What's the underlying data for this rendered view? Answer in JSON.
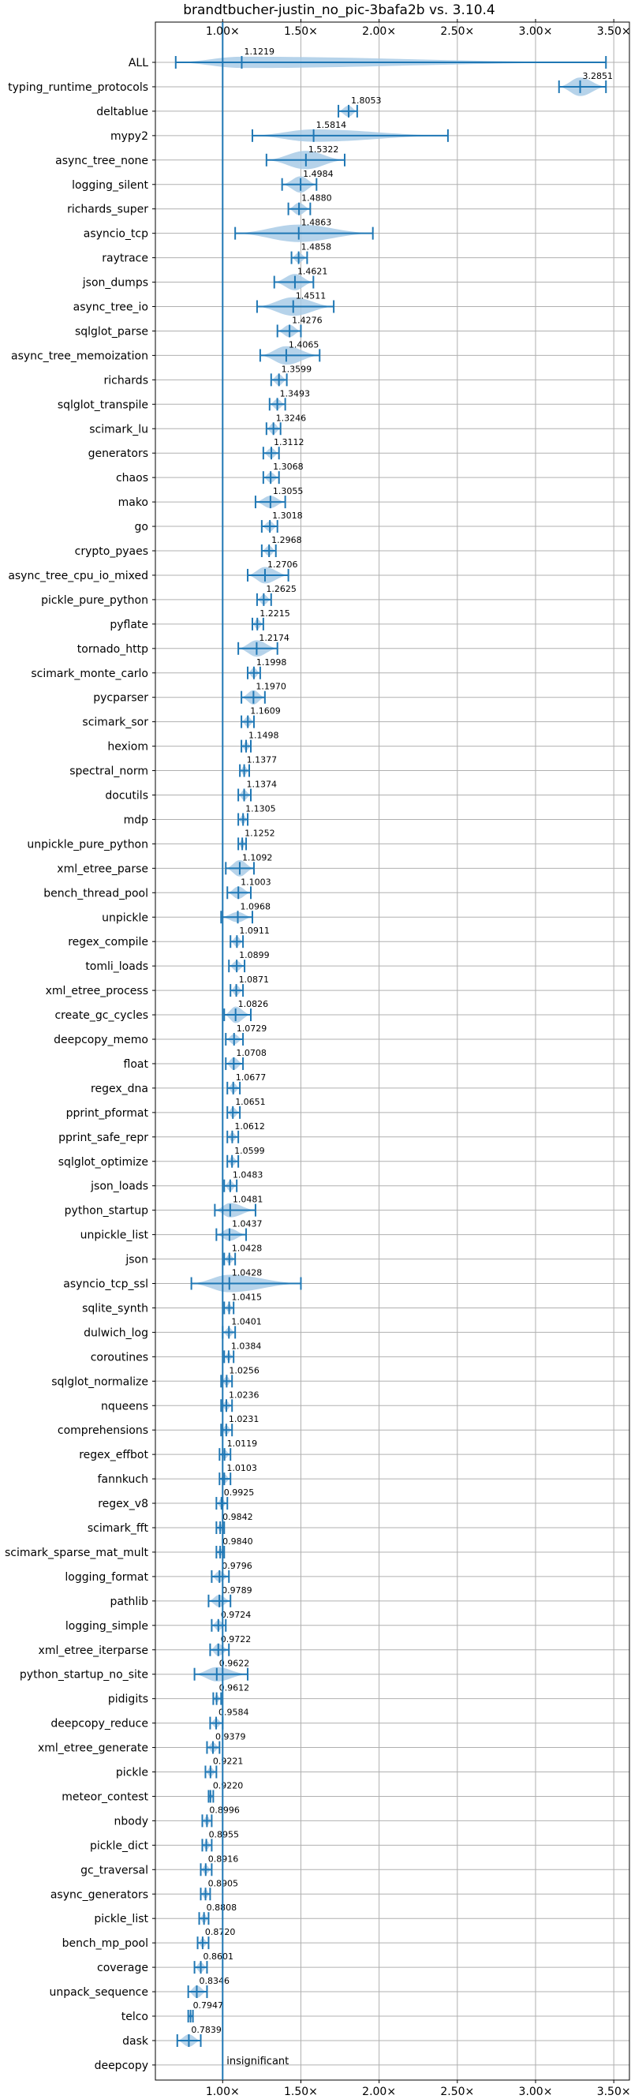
{
  "chart_data": {
    "type": "violin",
    "title": "brandtbucher-justin_no_pic-3bafa2b vs. 3.10.4",
    "xlim": [
      0.57,
      3.6
    ],
    "x_ticks": [
      1.0,
      1.5,
      2.0,
      2.5,
      3.0,
      3.5
    ],
    "x_tick_labels": [
      "1.00×",
      "1.50×",
      "2.00×",
      "2.50×",
      "3.00×",
      "3.50×"
    ],
    "reference_line": 1.0,
    "grid": true,
    "colors": {
      "violin": "#a9cbe6",
      "line": "#1f77b4",
      "grid": "#b0b0b0"
    },
    "annotation": "insignificant",
    "benchmarks": [
      {
        "name": "ALL",
        "value": "1.1219",
        "median": 1.1219,
        "min": 0.7,
        "max": 3.45,
        "width": 0.55
      },
      {
        "name": "typing_runtime_protocols",
        "value": "3.2851",
        "median": 3.2851,
        "min": 3.15,
        "max": 3.45,
        "width": 0.9
      },
      {
        "name": "deltablue",
        "value": "1.8053",
        "median": 1.8053,
        "min": 1.74,
        "max": 1.86,
        "width": 0.55
      },
      {
        "name": "mypy2",
        "value": "1.5814",
        "median": 1.5814,
        "min": 1.19,
        "max": 2.44,
        "width": 0.6
      },
      {
        "name": "async_tree_none",
        "value": "1.5322",
        "median": 1.5322,
        "min": 1.28,
        "max": 1.78,
        "width": 0.9
      },
      {
        "name": "logging_silent",
        "value": "1.4984",
        "median": 1.4984,
        "min": 1.38,
        "max": 1.6,
        "width": 0.8
      },
      {
        "name": "richards_super",
        "value": "1.4880",
        "median": 1.488,
        "min": 1.42,
        "max": 1.56,
        "width": 0.6
      },
      {
        "name": "asyncio_tcp",
        "value": "1.4863",
        "median": 1.4863,
        "min": 1.08,
        "max": 1.96,
        "width": 0.85
      },
      {
        "name": "raytrace",
        "value": "1.4858",
        "median": 1.4858,
        "min": 1.44,
        "max": 1.54,
        "width": 0.5
      },
      {
        "name": "json_dumps",
        "value": "1.4621",
        "median": 1.4621,
        "min": 1.33,
        "max": 1.58,
        "width": 0.8
      },
      {
        "name": "async_tree_io",
        "value": "1.4511",
        "median": 1.4511,
        "min": 1.22,
        "max": 1.71,
        "width": 0.9
      },
      {
        "name": "sqlglot_parse",
        "value": "1.4276",
        "median": 1.4276,
        "min": 1.35,
        "max": 1.5,
        "width": 0.6
      },
      {
        "name": "async_tree_memoization",
        "value": "1.4065",
        "median": 1.4065,
        "min": 1.24,
        "max": 1.62,
        "width": 0.9
      },
      {
        "name": "richards",
        "value": "1.3599",
        "median": 1.3599,
        "min": 1.31,
        "max": 1.41,
        "width": 0.55
      },
      {
        "name": "sqlglot_transpile",
        "value": "1.3493",
        "median": 1.3493,
        "min": 1.3,
        "max": 1.4,
        "width": 0.5
      },
      {
        "name": "scimark_lu",
        "value": "1.3246",
        "median": 1.3246,
        "min": 1.28,
        "max": 1.37,
        "width": 0.55
      },
      {
        "name": "generators",
        "value": "1.3112",
        "median": 1.3112,
        "min": 1.26,
        "max": 1.36,
        "width": 0.5
      },
      {
        "name": "chaos",
        "value": "1.3068",
        "median": 1.3068,
        "min": 1.26,
        "max": 1.36,
        "width": 0.5
      },
      {
        "name": "mako",
        "value": "1.3055",
        "median": 1.3055,
        "min": 1.21,
        "max": 1.4,
        "width": 0.6
      },
      {
        "name": "go",
        "value": "1.3018",
        "median": 1.3018,
        "min": 1.25,
        "max": 1.35,
        "width": 0.5
      },
      {
        "name": "crypto_pyaes",
        "value": "1.2968",
        "median": 1.2968,
        "min": 1.25,
        "max": 1.34,
        "width": 0.5
      },
      {
        "name": "async_tree_cpu_io_mixed",
        "value": "1.2706",
        "median": 1.2706,
        "min": 1.16,
        "max": 1.42,
        "width": 0.8
      },
      {
        "name": "pickle_pure_python",
        "value": "1.2625",
        "median": 1.2625,
        "min": 1.22,
        "max": 1.31,
        "width": 0.5
      },
      {
        "name": "pyflate",
        "value": "1.2215",
        "median": 1.2215,
        "min": 1.19,
        "max": 1.26,
        "width": 0.5
      },
      {
        "name": "tornado_http",
        "value": "1.2174",
        "median": 1.2174,
        "min": 1.1,
        "max": 1.35,
        "width": 0.8
      },
      {
        "name": "scimark_monte_carlo",
        "value": "1.1998",
        "median": 1.1998,
        "min": 1.16,
        "max": 1.24,
        "width": 0.5
      },
      {
        "name": "pycparser",
        "value": "1.1970",
        "median": 1.197,
        "min": 1.12,
        "max": 1.27,
        "width": 0.7
      },
      {
        "name": "scimark_sor",
        "value": "1.1609",
        "median": 1.1609,
        "min": 1.12,
        "max": 1.2,
        "width": 0.5
      },
      {
        "name": "hexiom",
        "value": "1.1498",
        "median": 1.1498,
        "min": 1.12,
        "max": 1.18,
        "width": 0.45
      },
      {
        "name": "spectral_norm",
        "value": "1.1377",
        "median": 1.1377,
        "min": 1.11,
        "max": 1.17,
        "width": 0.45
      },
      {
        "name": "docutils",
        "value": "1.1374",
        "median": 1.1374,
        "min": 1.1,
        "max": 1.18,
        "width": 0.5
      },
      {
        "name": "mdp",
        "value": "1.1305",
        "median": 1.1305,
        "min": 1.1,
        "max": 1.16,
        "width": 0.45
      },
      {
        "name": "unpickle_pure_python",
        "value": "1.1252",
        "median": 1.1252,
        "min": 1.1,
        "max": 1.15,
        "width": 0.45
      },
      {
        "name": "xml_etree_parse",
        "value": "1.1092",
        "median": 1.1092,
        "min": 1.02,
        "max": 1.2,
        "width": 0.8
      },
      {
        "name": "bench_thread_pool",
        "value": "1.1003",
        "median": 1.1003,
        "min": 1.03,
        "max": 1.18,
        "width": 0.6
      },
      {
        "name": "unpickle",
        "value": "1.0968",
        "median": 1.0968,
        "min": 0.99,
        "max": 1.19,
        "width": 0.5
      },
      {
        "name": "regex_compile",
        "value": "1.0911",
        "median": 1.0911,
        "min": 1.05,
        "max": 1.13,
        "width": 0.5
      },
      {
        "name": "tomli_loads",
        "value": "1.0899",
        "median": 1.0899,
        "min": 1.04,
        "max": 1.14,
        "width": 0.5
      },
      {
        "name": "xml_etree_process",
        "value": "1.0871",
        "median": 1.0871,
        "min": 1.05,
        "max": 1.13,
        "width": 0.5
      },
      {
        "name": "create_gc_cycles",
        "value": "1.0826",
        "median": 1.0826,
        "min": 1.01,
        "max": 1.18,
        "width": 0.8
      },
      {
        "name": "deepcopy_memo",
        "value": "1.0729",
        "median": 1.0729,
        "min": 1.02,
        "max": 1.13,
        "width": 0.5
      },
      {
        "name": "float",
        "value": "1.0708",
        "median": 1.0708,
        "min": 1.02,
        "max": 1.13,
        "width": 0.6
      },
      {
        "name": "regex_dna",
        "value": "1.0677",
        "median": 1.0677,
        "min": 1.03,
        "max": 1.11,
        "width": 0.5
      },
      {
        "name": "pprint_pformat",
        "value": "1.0651",
        "median": 1.0651,
        "min": 1.03,
        "max": 1.11,
        "width": 0.5
      },
      {
        "name": "pprint_safe_repr",
        "value": "1.0612",
        "median": 1.0612,
        "min": 1.03,
        "max": 1.1,
        "width": 0.45
      },
      {
        "name": "sqlglot_optimize",
        "value": "1.0599",
        "median": 1.0599,
        "min": 1.03,
        "max": 1.1,
        "width": 0.45
      },
      {
        "name": "json_loads",
        "value": "1.0483",
        "median": 1.0483,
        "min": 1.01,
        "max": 1.09,
        "width": 0.5
      },
      {
        "name": "python_startup",
        "value": "1.0481",
        "median": 1.0481,
        "min": 0.95,
        "max": 1.21,
        "width": 0.7
      },
      {
        "name": "unpickle_list",
        "value": "1.0437",
        "median": 1.0437,
        "min": 0.96,
        "max": 1.15,
        "width": 0.6
      },
      {
        "name": "json",
        "value": "1.0428",
        "median": 1.0428,
        "min": 1.01,
        "max": 1.08,
        "width": 0.45
      },
      {
        "name": "asyncio_tcp_ssl",
        "value": "1.0428",
        "median": 1.0428,
        "min": 0.8,
        "max": 1.5,
        "width": 0.85
      },
      {
        "name": "sqlite_synth",
        "value": "1.0415",
        "median": 1.0415,
        "min": 1.01,
        "max": 1.07,
        "width": 0.4
      },
      {
        "name": "dulwich_log",
        "value": "1.0401",
        "median": 1.0401,
        "min": 1.0,
        "max": 1.08,
        "width": 0.45
      },
      {
        "name": "coroutines",
        "value": "1.0384",
        "median": 1.0384,
        "min": 1.01,
        "max": 1.07,
        "width": 0.4
      },
      {
        "name": "sqlglot_normalize",
        "value": "1.0256",
        "median": 1.0256,
        "min": 0.99,
        "max": 1.06,
        "width": 0.45
      },
      {
        "name": "nqueens",
        "value": "1.0236",
        "median": 1.0236,
        "min": 0.99,
        "max": 1.06,
        "width": 0.45
      },
      {
        "name": "comprehensions",
        "value": "1.0231",
        "median": 1.0231,
        "min": 0.99,
        "max": 1.06,
        "width": 0.45
      },
      {
        "name": "regex_effbot",
        "value": "1.0119",
        "median": 1.0119,
        "min": 0.98,
        "max": 1.05,
        "width": 0.45
      },
      {
        "name": "fannkuch",
        "value": "1.0103",
        "median": 1.0103,
        "min": 0.98,
        "max": 1.05,
        "width": 0.45
      },
      {
        "name": "regex_v8",
        "value": "0.9925",
        "median": 0.9925,
        "min": 0.96,
        "max": 1.03,
        "width": 0.45
      },
      {
        "name": "scimark_fft",
        "value": "0.9842",
        "median": 0.9842,
        "min": 0.96,
        "max": 1.01,
        "width": 0.4
      },
      {
        "name": "scimark_sparse_mat_mult",
        "value": "0.9840",
        "median": 0.984,
        "min": 0.96,
        "max": 1.01,
        "width": 0.4
      },
      {
        "name": "logging_format",
        "value": "0.9796",
        "median": 0.9796,
        "min": 0.93,
        "max": 1.04,
        "width": 0.55
      },
      {
        "name": "pathlib",
        "value": "0.9789",
        "median": 0.9789,
        "min": 0.91,
        "max": 1.05,
        "width": 0.6
      },
      {
        "name": "logging_simple",
        "value": "0.9724",
        "median": 0.9724,
        "min": 0.93,
        "max": 1.02,
        "width": 0.5
      },
      {
        "name": "xml_etree_iterparse",
        "value": "0.9722",
        "median": 0.9722,
        "min": 0.92,
        "max": 1.04,
        "width": 0.6
      },
      {
        "name": "python_startup_no_site",
        "value": "0.9622",
        "median": 0.9622,
        "min": 0.82,
        "max": 1.16,
        "width": 0.7
      },
      {
        "name": "pidigits",
        "value": "0.9612",
        "median": 0.9612,
        "min": 0.94,
        "max": 0.99,
        "width": 0.4
      },
      {
        "name": "deepcopy_reduce",
        "value": "0.9584",
        "median": 0.9584,
        "min": 0.92,
        "max": 1.0,
        "width": 0.45
      },
      {
        "name": "xml_etree_generate",
        "value": "0.9379",
        "median": 0.9379,
        "min": 0.9,
        "max": 0.98,
        "width": 0.5
      },
      {
        "name": "pickle",
        "value": "0.9221",
        "median": 0.9221,
        "min": 0.89,
        "max": 0.96,
        "width": 0.45
      },
      {
        "name": "meteor_contest",
        "value": "0.9220",
        "median": 0.922,
        "min": 0.91,
        "max": 0.94,
        "width": 0.35
      },
      {
        "name": "nbody",
        "value": "0.8996",
        "median": 0.8996,
        "min": 0.87,
        "max": 0.93,
        "width": 0.45
      },
      {
        "name": "pickle_dict",
        "value": "0.8955",
        "median": 0.8955,
        "min": 0.87,
        "max": 0.93,
        "width": 0.45
      },
      {
        "name": "gc_traversal",
        "value": "0.8916",
        "median": 0.8916,
        "min": 0.86,
        "max": 0.93,
        "width": 0.45
      },
      {
        "name": "async_generators",
        "value": "0.8905",
        "median": 0.8905,
        "min": 0.86,
        "max": 0.92,
        "width": 0.45
      },
      {
        "name": "pickle_list",
        "value": "0.8808",
        "median": 0.8808,
        "min": 0.85,
        "max": 0.91,
        "width": 0.45
      },
      {
        "name": "bench_mp_pool",
        "value": "0.8720",
        "median": 0.872,
        "min": 0.84,
        "max": 0.91,
        "width": 0.45
      },
      {
        "name": "coverage",
        "value": "0.8601",
        "median": 0.8601,
        "min": 0.82,
        "max": 0.9,
        "width": 0.5
      },
      {
        "name": "unpack_sequence",
        "value": "0.8346",
        "median": 0.8346,
        "min": 0.78,
        "max": 0.9,
        "width": 0.6
      },
      {
        "name": "telco",
        "value": "0.7947",
        "median": 0.7947,
        "min": 0.78,
        "max": 0.81,
        "width": 0.4
      },
      {
        "name": "dask",
        "value": "0.7839",
        "median": 0.7839,
        "min": 0.71,
        "max": 0.86,
        "width": 0.6
      },
      {
        "name": "deepcopy",
        "value": "",
        "median": null,
        "min": null,
        "max": null,
        "width": 0
      }
    ]
  }
}
